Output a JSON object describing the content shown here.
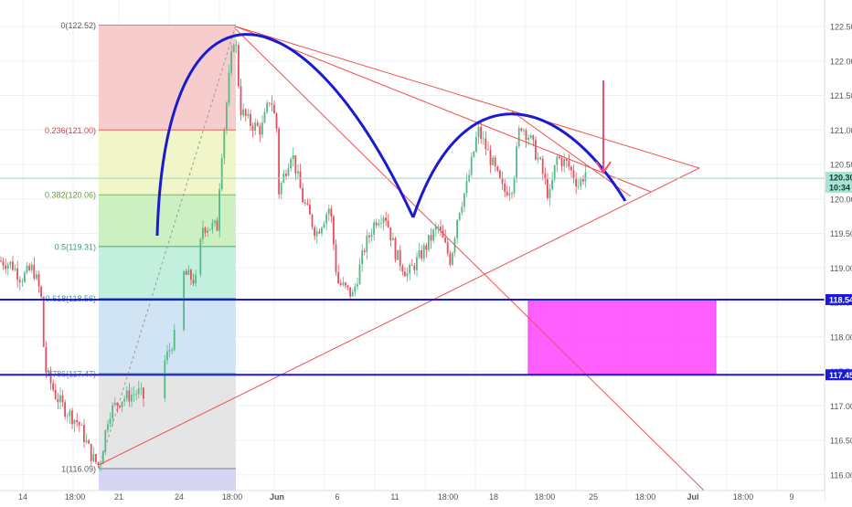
{
  "chart_data": {
    "type": "candlestick",
    "symbol_pair": "price chart with Fibonacci retracement",
    "y_axis": {
      "ticks": [
        "122.50",
        "122.00",
        "121.50",
        "121.00",
        "120.50",
        "120.00",
        "119.50",
        "119.00",
        "118.50",
        "118.00",
        "117.50",
        "117.00",
        "116.50",
        "116.00"
      ],
      "range": [
        115.85,
        122.75
      ],
      "position": "right"
    },
    "x_axis": {
      "tick_labels": [
        "14",
        "18:00",
        "21",
        "18:00",
        "24",
        "18:00",
        "Jun",
        "18:00",
        "6",
        "11",
        "18:00",
        "18",
        "18:00",
        "25",
        "18:00",
        "Jul",
        "18:00",
        "9"
      ]
    },
    "price_badges": [
      {
        "value": "120.30",
        "style": "mint"
      },
      {
        "value": "10:34",
        "style": "mint"
      },
      {
        "value": "118.54",
        "style": "blue"
      },
      {
        "value": "117.45",
        "style": "blue"
      }
    ],
    "fibonacci_levels": [
      {
        "label": "0(122.52)",
        "level": 0,
        "price": 122.52,
        "label_color": "#5a5a5a",
        "line_color": "#c08a8a",
        "fill": "#f5c9c9"
      },
      {
        "label": "0.236(121.00)",
        "level": 0.236,
        "price": 121.0,
        "label_color": "#d0404a",
        "line_color": "#e06060",
        "fill": "#eff5c4"
      },
      {
        "label": "0.382(120.06)",
        "level": 0.382,
        "price": 120.06,
        "label_color": "#6a9a3a",
        "line_color": "#80bb50",
        "fill": "#c9efbf"
      },
      {
        "label": "0.5(119.31)",
        "level": 0.5,
        "price": 119.31,
        "label_color": "#2ea36c",
        "line_color": "#40b070",
        "fill": "#c0efdc"
      },
      {
        "label": "0.618(118.56)",
        "level": 0.618,
        "price": 118.56,
        "label_color": "#3a8aaa",
        "line_color": "#60a0c0",
        "fill": "#cde3f3"
      },
      {
        "label": "0.786(117.47)",
        "level": 0.786,
        "price": 117.47,
        "label_color": "#6a8aaa",
        "line_color": "#8aa0b0",
        "fill": "#e4e4e4"
      },
      {
        "label": "1(116.09)",
        "level": 1,
        "price": 116.09,
        "label_color": "#5a5a5a",
        "line_color": "#808080",
        "fill": "#d5d3f3"
      }
    ],
    "horizontal_levels": [
      {
        "price": 118.54,
        "color": "#1a1adf"
      },
      {
        "price": 117.45,
        "color": "#1a1adf"
      },
      {
        "price": 120.3,
        "color": "#9ad8c8"
      }
    ],
    "annotations": {
      "rectangle": {
        "price_top": 118.54,
        "price_bottom": 117.45,
        "color": "#ff44ff"
      },
      "cup_and_handle_arc_color": "#1a1ad0",
      "trendline_color": "#f05050",
      "arrow_color": "#f05070"
    },
    "grid": true,
    "legend": "none",
    "colors": {
      "up": "#53b987",
      "down": "#eb4d5c"
    }
  }
}
